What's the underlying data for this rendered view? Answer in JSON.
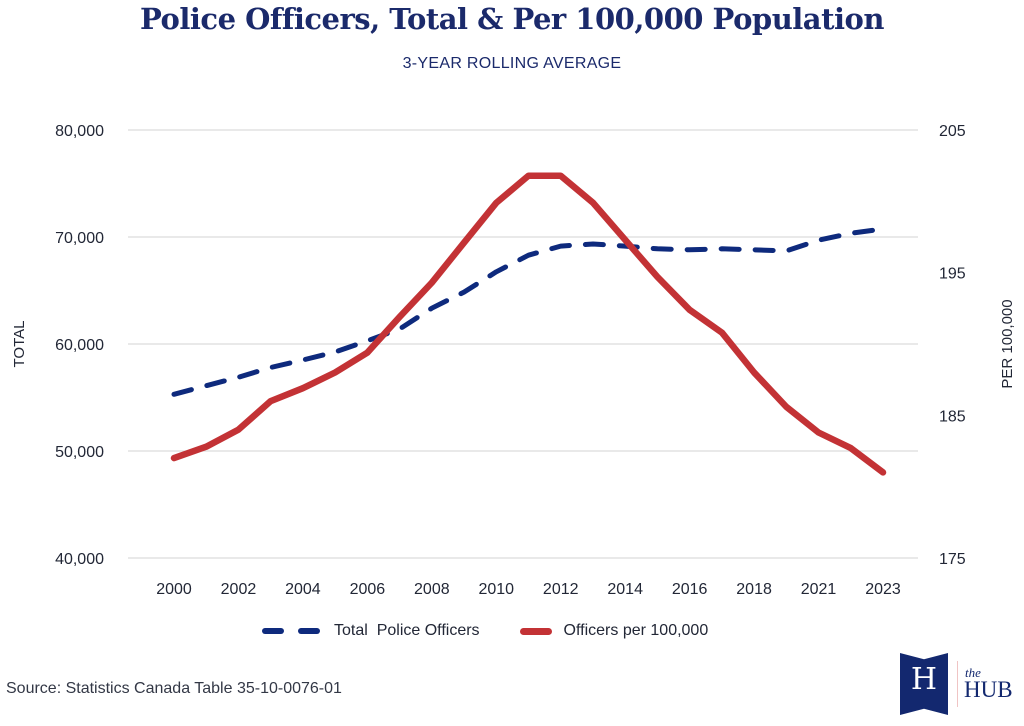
{
  "header": {
    "title": "Police Officers, Total & Per 100,000 Population",
    "subtitle": "3-YEAR ROLLING AVERAGE"
  },
  "colors": {
    "total_series": "#0e2a7d",
    "per_capita_series": "#c33235",
    "title": "#1b2a6b",
    "gridline": "#dcdcdc"
  },
  "chart_data": {
    "type": "line",
    "title": "Police Officers, Total & Per 100,000 Population",
    "subtitle": "3-YEAR ROLLING AVERAGE",
    "x": [
      "2000",
      "2001",
      "2002",
      "2003",
      "2004",
      "2005",
      "2006",
      "2007",
      "2008",
      "2009",
      "2010",
      "2011",
      "2012",
      "2013",
      "2014",
      "2015",
      "2016",
      "2017",
      "2018",
      "2019",
      "2021",
      "2022",
      "2023"
    ],
    "x_tick_labels": [
      "2000",
      "2002",
      "2004",
      "2006",
      "2008",
      "2010",
      "2012",
      "2014",
      "2016",
      "2018",
      "2021",
      "2023"
    ],
    "xlabel": "",
    "ylabel": "TOTAL",
    "ylabel_right": "PER 100,000",
    "ylim": [
      40000,
      80000
    ],
    "ylim_right": [
      175,
      205
    ],
    "y_ticks": [
      "80,000",
      "70,000",
      "60,000",
      "50,000",
      "40,000"
    ],
    "y_ticks_right": [
      "205",
      "195",
      "185",
      "175"
    ],
    "grid": true,
    "legend_position": "bottom",
    "series": [
      {
        "name": "Total  Police Officers",
        "axis": "left",
        "style": "dashed",
        "values": [
          55300,
          56100,
          56900,
          57800,
          58500,
          59250,
          60300,
          61400,
          63350,
          64850,
          66750,
          68300,
          69150,
          69350,
          69150,
          68900,
          68800,
          68900,
          68800,
          68700,
          69700,
          70350,
          70750
        ]
      },
      {
        "name": "Officers per 100,000",
        "axis": "right",
        "style": "solid",
        "values": [
          182.0,
          182.8,
          184.0,
          186.0,
          186.9,
          188.0,
          189.4,
          191.9,
          194.3,
          197.1,
          199.9,
          201.8,
          201.8,
          199.9,
          197.3,
          194.7,
          192.4,
          190.8,
          188.0,
          185.6,
          183.8,
          182.7,
          181.0
        ]
      }
    ]
  },
  "legend": {
    "total_label": "Total  Police Officers",
    "per_capita_label": "Officers per 100,000"
  },
  "footer": {
    "source": "Source: Statistics Canada Table 35-10-0076-01"
  },
  "logo": {
    "monogram": "H",
    "the": "the",
    "name": "HUB"
  }
}
